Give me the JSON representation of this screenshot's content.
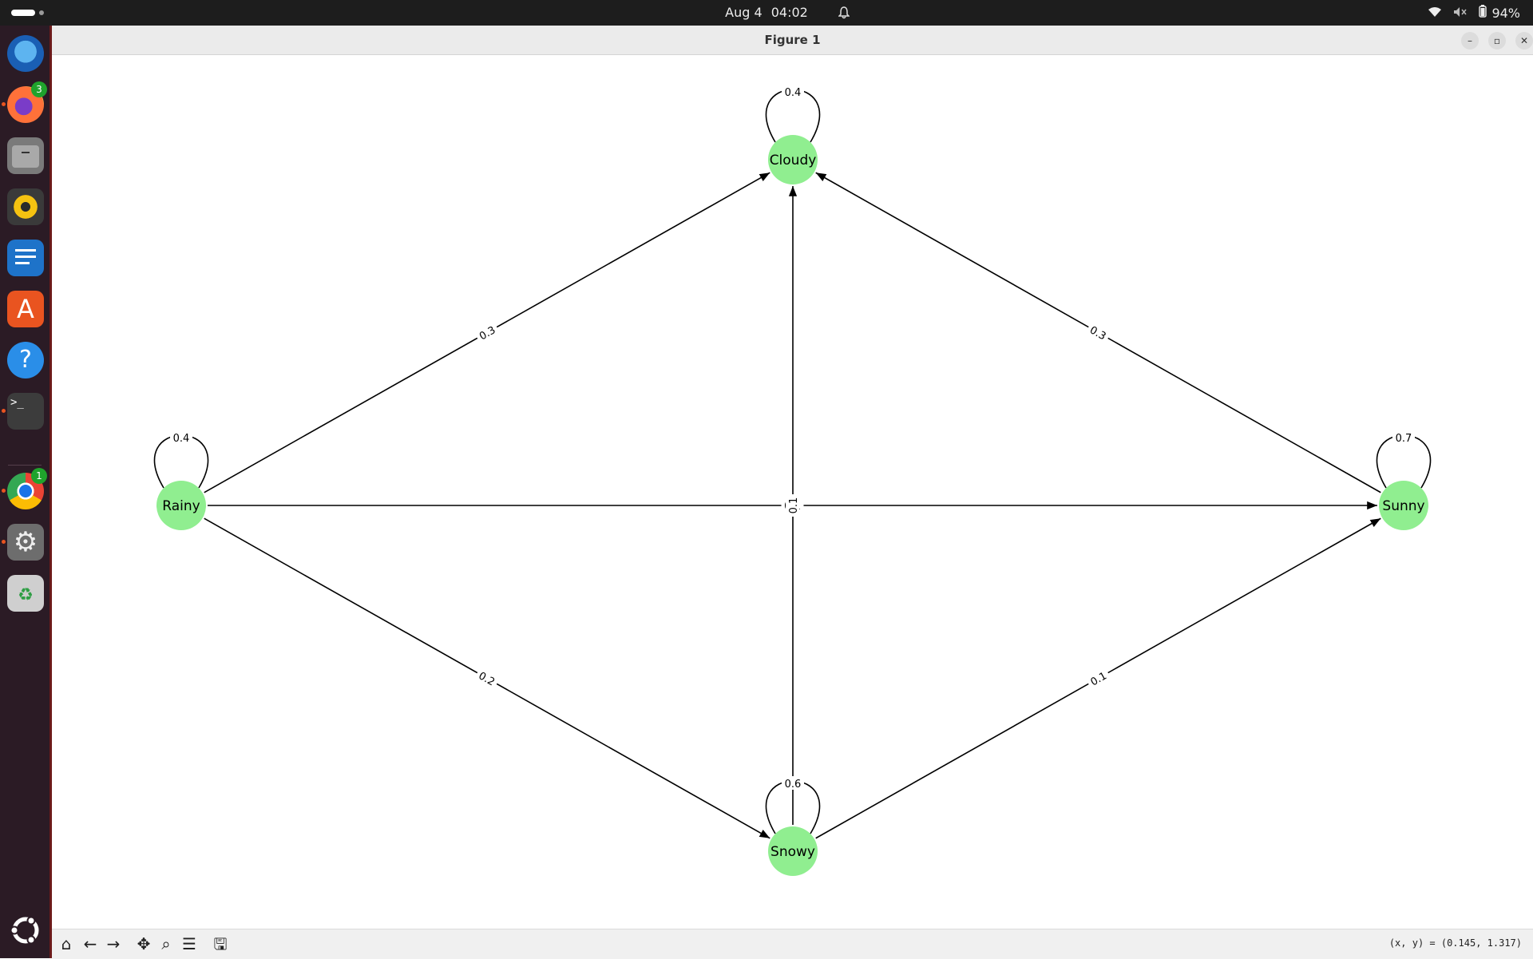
{
  "topbar": {
    "date": "Aug 4",
    "time": "04:02",
    "battery": "94%"
  },
  "dock": {
    "items": [
      {
        "name": "thunderbird",
        "badge": ""
      },
      {
        "name": "firefox",
        "badge": "3"
      },
      {
        "name": "files",
        "badge": ""
      },
      {
        "name": "rhythmbox",
        "badge": ""
      },
      {
        "name": "writer",
        "badge": ""
      },
      {
        "name": "app-center",
        "badge": ""
      },
      {
        "name": "help",
        "badge": ""
      },
      {
        "name": "terminal",
        "badge": ""
      },
      {
        "name": "chrome",
        "badge": "1"
      },
      {
        "name": "settings",
        "badge": ""
      },
      {
        "name": "trash",
        "badge": ""
      }
    ]
  },
  "window": {
    "title": "Figure 1"
  },
  "graph": {
    "nodes": [
      {
        "id": "Cloudy",
        "label": "Cloudy"
      },
      {
        "id": "Rainy",
        "label": "Rainy"
      },
      {
        "id": "Sunny",
        "label": "Sunny"
      },
      {
        "id": "Snowy",
        "label": "Snowy"
      }
    ],
    "edges": [
      {
        "from": "Cloudy",
        "to": "Cloudy",
        "label": "0.4"
      },
      {
        "from": "Rainy",
        "to": "Rainy",
        "label": "0.4"
      },
      {
        "from": "Sunny",
        "to": "Sunny",
        "label": "0.7"
      },
      {
        "from": "Snowy",
        "to": "Snowy",
        "label": "0.6"
      },
      {
        "from": "Rainy",
        "to": "Cloudy",
        "label": "0.3"
      },
      {
        "from": "Sunny",
        "to": "Cloudy",
        "label": "0.3"
      },
      {
        "from": "Rainy",
        "to": "Sunny",
        "label": "0.1"
      },
      {
        "from": "Snowy",
        "to": "Cloudy",
        "label": "0.1"
      },
      {
        "from": "Rainy",
        "to": "Snowy",
        "label": "0.2"
      },
      {
        "from": "Snowy",
        "to": "Sunny",
        "label": "0.1"
      }
    ],
    "node_color": "#90ee90"
  },
  "toolbar": {
    "coords": "(x, y) = (0.145, 1.317)"
  }
}
